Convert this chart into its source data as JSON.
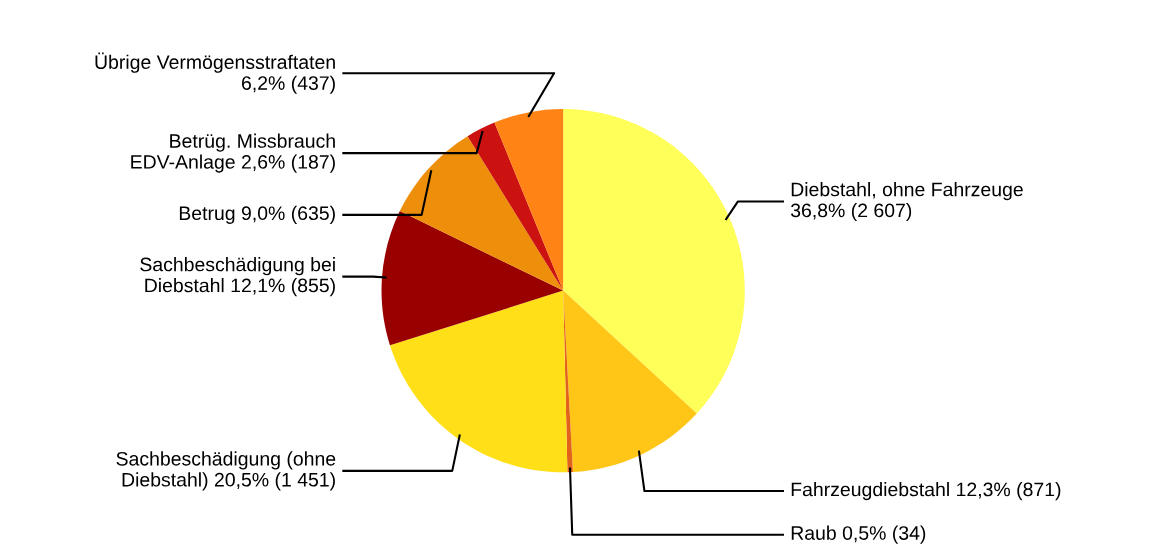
{
  "chart_data": {
    "type": "pie",
    "categories": [
      "Diebstahl, ohne Fahrzeuge",
      "Fahrzeugdiebstahl",
      "Raub",
      "Sachbeschädigung (ohne\nDiebstahl)",
      "Sachbeschädigung bei\nDiebstahl",
      "Betrug",
      "Betrüg. Missbrauch\nEDV-Anlage",
      "Übrige Vermögensstraftaten"
    ],
    "values": [
      2607,
      871,
      34,
      1451,
      855,
      635,
      187,
      437
    ],
    "value_labels": [
      "36,8% (2 607)",
      "12,3% (871)",
      "0,5% (34)",
      "20,5% (1 451)",
      "12,1% (855)",
      "9,0% (635)",
      "2,6% (187)",
      "6,2% (437)"
    ],
    "colors": [
      "#ffff5a",
      "#ffc617",
      "#e2621b",
      "#ffdf17",
      "#990000",
      "#ee8f0b",
      "#cc1111",
      "#ff8415"
    ],
    "legend": false
  }
}
